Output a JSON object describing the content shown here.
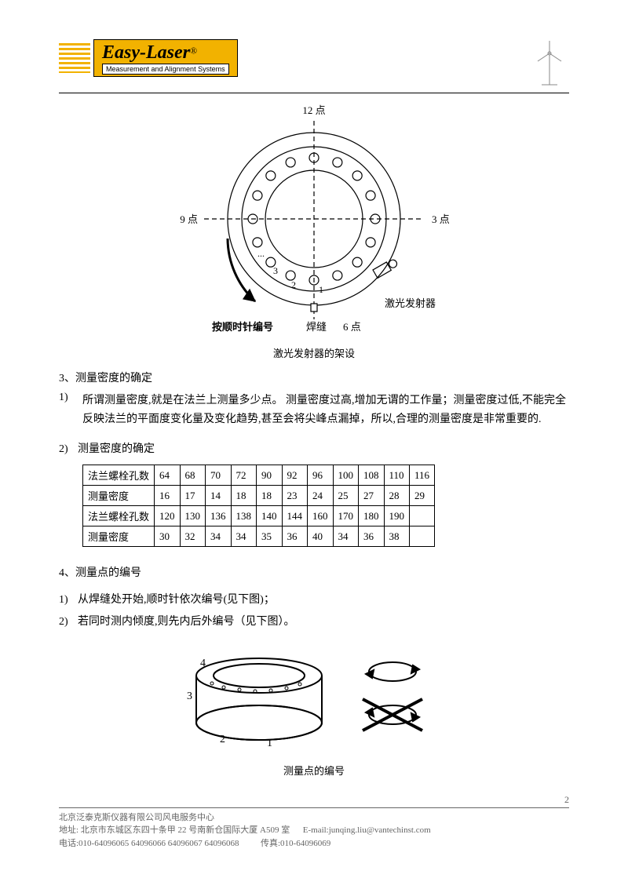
{
  "header": {
    "logo_main": "Easy-Laser",
    "logo_r": "®",
    "logo_sub": "Measurement and Alignment Systems"
  },
  "diagram1": {
    "caption": "激光发射器的架设",
    "labels": {
      "top": "12 点",
      "right": "3 点",
      "bottom": "6 点",
      "left": "9 点",
      "emitter": "激光发射器",
      "weld": "焊缝",
      "cw": "按顺时针编号",
      "n1": "1",
      "n2": "2",
      "n3": "3",
      "dots": "..."
    },
    "colors": {
      "stroke": "#000000",
      "bg": "#ffffff"
    }
  },
  "section3": {
    "title": "3、测量密度的确定"
  },
  "item3_1": {
    "num": "1)",
    "text": "所谓测量密度,就是在法兰上测量多少点。 测量密度过高,增加无谓的工作量；测量密度过低,不能完全反映法兰的平面度变化量及变化趋势,甚至会将尖峰点漏掉，所以,合理的测量密度是非常重要的."
  },
  "item3_2": {
    "num": "2)",
    "text": "测量密度的确定"
  },
  "density_table": {
    "row1_label": "法兰螺栓孔数",
    "row1": [
      "64",
      "68",
      "70",
      "72",
      "90",
      "92",
      "96",
      "100",
      "108",
      "110",
      "116"
    ],
    "row2_label": "测量密度",
    "row2": [
      "16",
      "17",
      "14",
      "18",
      "18",
      "23",
      "24",
      "25",
      "27",
      "28",
      "29"
    ],
    "row3_label": "法兰螺栓孔数",
    "row3": [
      "120",
      "130",
      "136",
      "138",
      "140",
      "144",
      "160",
      "170",
      "180",
      "190",
      ""
    ],
    "row4_label": "测量密度",
    "row4": [
      "30",
      "32",
      "34",
      "34",
      "35",
      "36",
      "40",
      "34",
      "36",
      "38",
      ""
    ]
  },
  "section4": {
    "title": "4、测量点的编号"
  },
  "item4_1": {
    "num": "1)",
    "text": "从焊缝处开始,顺时针依次编号(见下图)；"
  },
  "item4_2": {
    "num": "2)",
    "text": "若同时测内倾度,则先内后外编号（见下图）。"
  },
  "diagram2": {
    "caption": "测量点的编号",
    "labels": {
      "n1": "1",
      "n2": "2",
      "n3": "3",
      "n4": "4"
    }
  },
  "footer": {
    "line1": "北京泛泰克斯仪器有限公司风电服务中心",
    "line2a": "地址: 北京市东城区东四十条甲 22 号南新仓国际大厦 A509 室",
    "line2b": "E-mail:junqing.liu@vantechinst.com",
    "line3a": "电话:010-64096065 64096066 64096067 64096068",
    "line3b": "传真:010-64096069"
  },
  "page_num": "2"
}
